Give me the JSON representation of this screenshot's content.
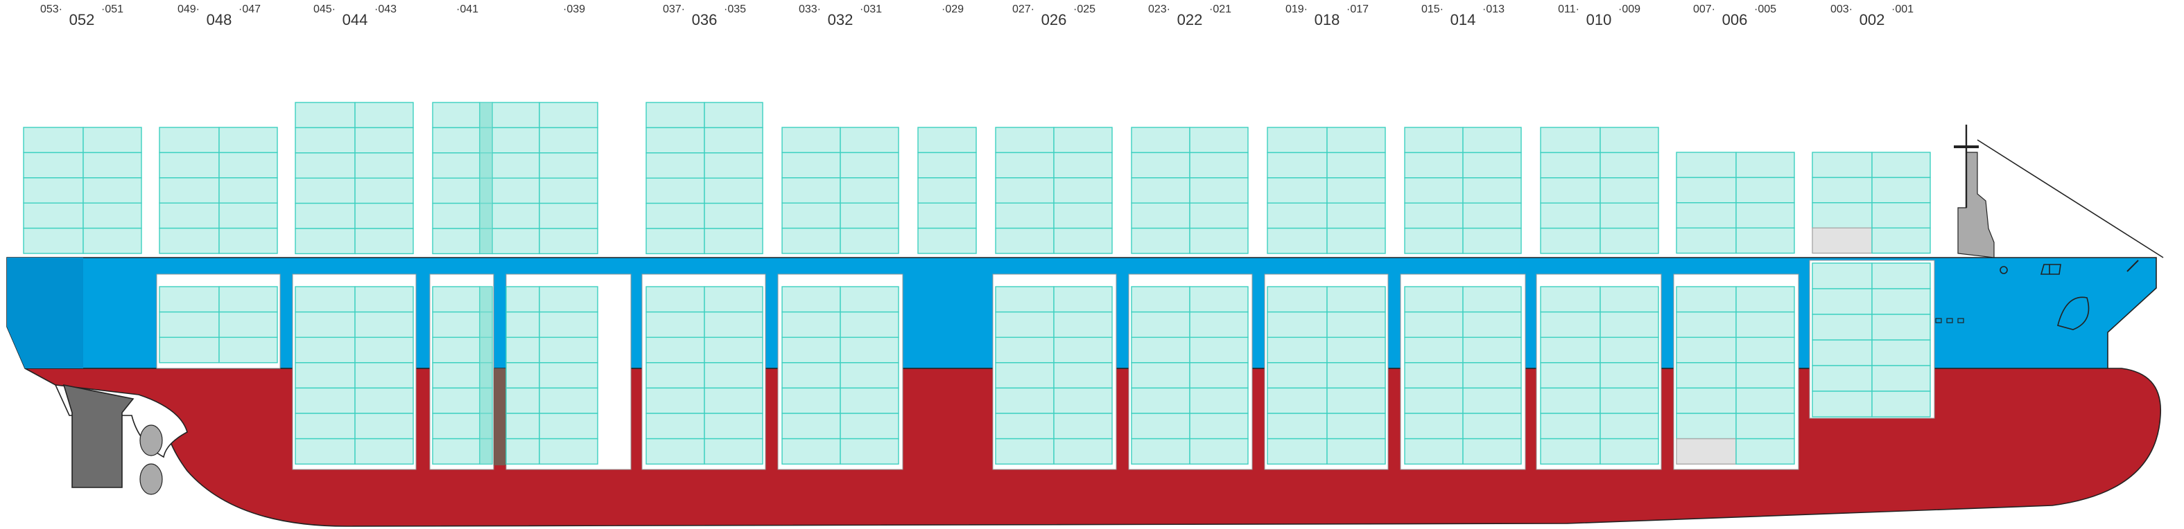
{
  "bays": [
    {
      "left": "053·",
      "center": "052",
      "right": "·051"
    },
    {
      "left": "049·",
      "center": "048",
      "right": "·047"
    },
    {
      "left": "045·",
      "center": "044",
      "right": "·043"
    },
    {
      "right": "·041"
    },
    {
      "right": "·039"
    },
    {
      "left": "037·",
      "center": "036",
      "right": "·035"
    },
    {
      "left": "033·",
      "center": "032",
      "right": "·031"
    },
    {
      "right": "·029"
    },
    {
      "left": "027·",
      "center": "026",
      "right": "·025"
    },
    {
      "left": "023·",
      "center": "022",
      "right": "·021"
    },
    {
      "left": "019·",
      "center": "018",
      "right": "·017"
    },
    {
      "left": "015·",
      "center": "014",
      "right": "·013"
    },
    {
      "left": "011·",
      "center": "010",
      "right": "·009"
    },
    {
      "left": "007·",
      "center": "006",
      "right": "·005"
    },
    {
      "left": "003·",
      "center": "002",
      "right": "·001"
    }
  ]
}
